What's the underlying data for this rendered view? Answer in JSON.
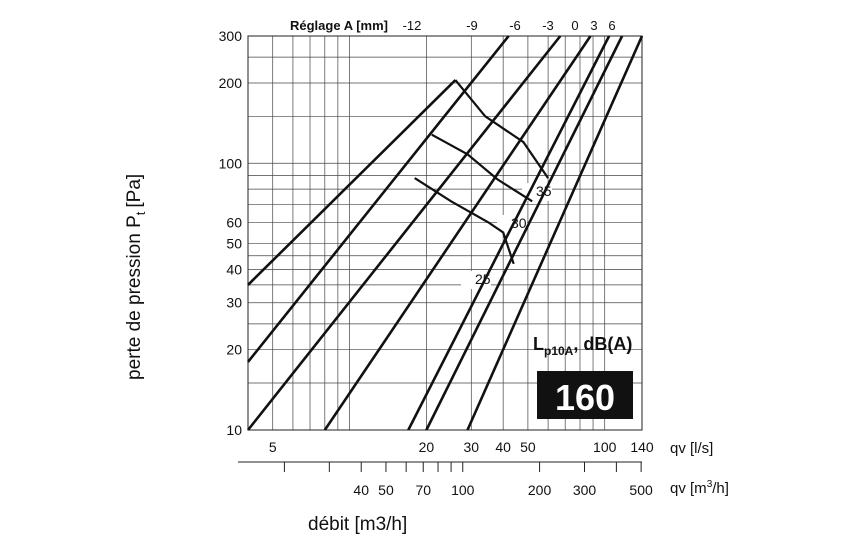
{
  "chart_data": {
    "type": "line",
    "ylabel_main": "perte de pression P",
    "ylabel_sub": "t",
    "ylabel_unit": "[Pa]",
    "xlabel": "débit [m3/h]",
    "scale": "log-log",
    "grid": true,
    "ylim": [
      10,
      300
    ],
    "xlim_ls": [
      4,
      140
    ],
    "reglage_title": "Réglage A [mm]",
    "reglage_labels": [
      "-12",
      "-9",
      "-6",
      "-3",
      "0",
      "3",
      "6"
    ],
    "y_ticks": [
      10,
      20,
      30,
      40,
      50,
      60,
      100,
      200,
      300
    ],
    "x_ticks_ls": [
      5,
      20,
      30,
      40,
      50,
      100,
      140
    ],
    "x_unit_ls": "qv [l/s]",
    "x_ticks_m3h": [
      40,
      50,
      70,
      100,
      200,
      300,
      500
    ],
    "x_unit_m3h_main": "qv [m",
    "x_unit_m3h_sup": "3",
    "x_unit_m3h_end": "/h]",
    "series": [
      {
        "name": "-12",
        "points": [
          [
            4,
            35
          ],
          [
            26,
            205
          ]
        ]
      },
      {
        "name": "-9",
        "points": [
          [
            4,
            18
          ],
          [
            42,
            300
          ]
        ]
      },
      {
        "name": "-6",
        "points": [
          [
            4,
            10
          ],
          [
            67,
            300
          ]
        ]
      },
      {
        "name": "-3",
        "points": [
          [
            8,
            10
          ],
          [
            88,
            300
          ]
        ]
      },
      {
        "name": "0",
        "points": [
          [
            17,
            10
          ],
          [
            104,
            300
          ]
        ]
      },
      {
        "name": "3",
        "points": [
          [
            20,
            10
          ],
          [
            117,
            300
          ]
        ]
      },
      {
        "name": "6",
        "points": [
          [
            29,
            10
          ],
          [
            140,
            300
          ]
        ]
      }
    ],
    "noise_curves": [
      {
        "label": "35",
        "points": [
          [
            26,
            205
          ],
          [
            34,
            150
          ],
          [
            48,
            120
          ],
          [
            60,
            88
          ]
        ]
      },
      {
        "label": "30",
        "points": [
          [
            21,
            128
          ],
          [
            29,
            108
          ],
          [
            38,
            87
          ],
          [
            52,
            72
          ]
        ]
      },
      {
        "label": "25",
        "points": [
          [
            18,
            88
          ],
          [
            25,
            72
          ],
          [
            35,
            60
          ],
          [
            40,
            55
          ],
          [
            44,
            42
          ]
        ]
      }
    ],
    "annotation_title": "L",
    "annotation_sub": "p10A",
    "annotation_rest": ", dB(A)",
    "annotation_value": "160"
  }
}
